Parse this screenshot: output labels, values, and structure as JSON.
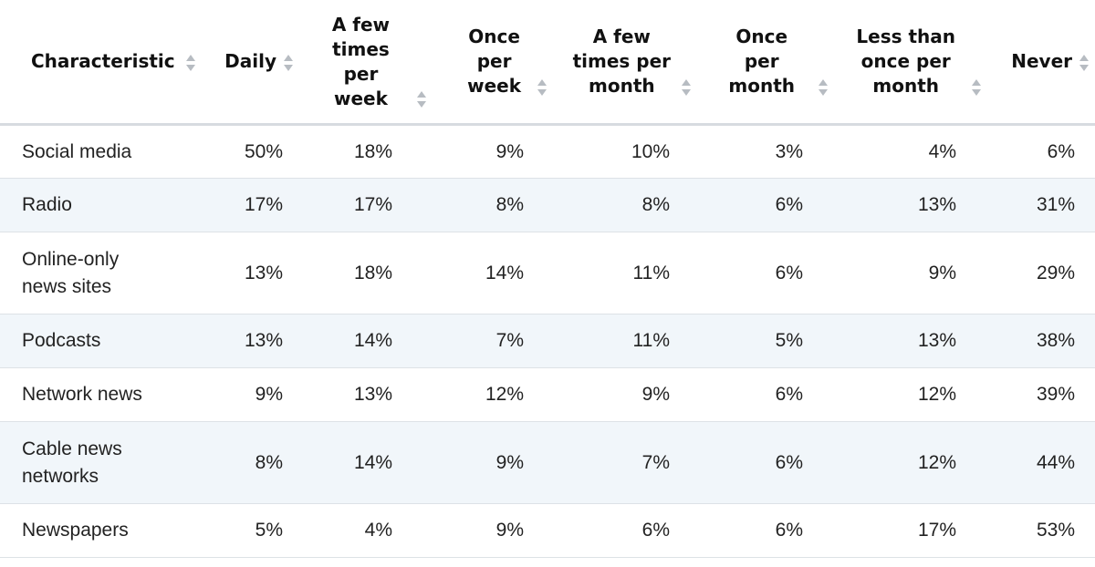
{
  "chart_data": {
    "type": "table",
    "columns": [
      "Characteristic",
      "Daily",
      "A few\ntimes\nper\nweek",
      "Once\nper\nweek",
      "A few\ntimes per\nmonth",
      "Once\nper\nmonth",
      "Less than\nonce per\nmonth",
      "Never"
    ],
    "rows": [
      {
        "label": "Social media",
        "values": [
          "50%",
          "18%",
          "9%",
          "10%",
          "3%",
          "4%",
          "6%"
        ]
      },
      {
        "label": "Radio",
        "values": [
          "17%",
          "17%",
          "8%",
          "8%",
          "6%",
          "13%",
          "31%"
        ]
      },
      {
        "label": "Online-only\nnews sites",
        "values": [
          "13%",
          "18%",
          "14%",
          "11%",
          "6%",
          "9%",
          "29%"
        ]
      },
      {
        "label": "Podcasts",
        "values": [
          "13%",
          "14%",
          "7%",
          "11%",
          "5%",
          "13%",
          "38%"
        ]
      },
      {
        "label": "Network news",
        "values": [
          "9%",
          "13%",
          "12%",
          "9%",
          "6%",
          "12%",
          "39%"
        ]
      },
      {
        "label": "Cable news\nnetworks",
        "values": [
          "8%",
          "14%",
          "9%",
          "7%",
          "6%",
          "12%",
          "44%"
        ]
      },
      {
        "label": "Newspapers",
        "values": [
          "5%",
          "4%",
          "9%",
          "6%",
          "6%",
          "17%",
          "53%"
        ]
      }
    ]
  }
}
